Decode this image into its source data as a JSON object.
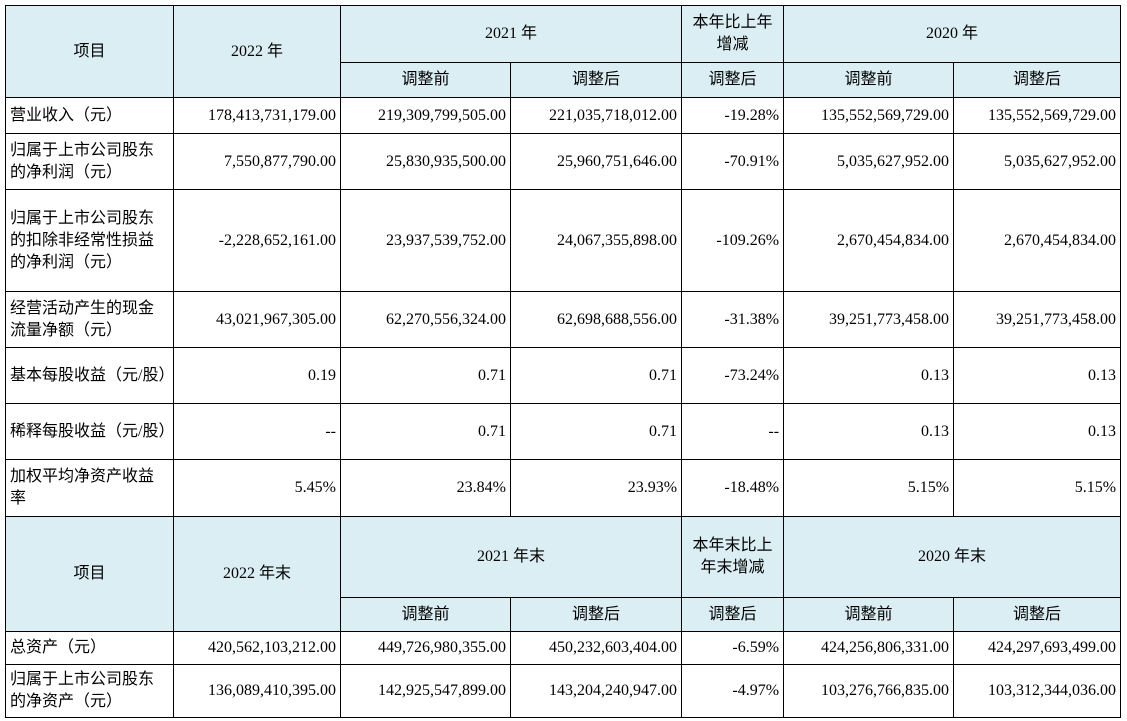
{
  "section1": {
    "header": {
      "item": "项目",
      "col_2022": "2022 年",
      "col_2021": "2021 年",
      "col_change": "本年比上年增减",
      "col_2020": "2020 年",
      "before": "调整前",
      "after": "调整后"
    },
    "rows": [
      {
        "label": "营业收入（元）",
        "v2022": "178,413,731,179.00",
        "v2021_before": "219,309,799,505.00",
        "v2021_after": "221,035,718,012.00",
        "change": "-19.28%",
        "v2020_before": "135,552,569,729.00",
        "v2020_after": "135,552,569,729.00"
      },
      {
        "label": "归属于上市公司股东的净利润（元）",
        "v2022": "7,550,877,790.00",
        "v2021_before": "25,830,935,500.00",
        "v2021_after": "25,960,751,646.00",
        "change": "-70.91%",
        "v2020_before": "5,035,627,952.00",
        "v2020_after": "5,035,627,952.00"
      },
      {
        "label": "归属于上市公司股东的扣除非经常性损益的净利润（元）",
        "v2022": "-2,228,652,161.00",
        "v2021_before": "23,937,539,752.00",
        "v2021_after": "24,067,355,898.00",
        "change": "-109.26%",
        "v2020_before": "2,670,454,834.00",
        "v2020_after": "2,670,454,834.00"
      },
      {
        "label": "经营活动产生的现金流量净额（元）",
        "v2022": "43,021,967,305.00",
        "v2021_before": "62,270,556,324.00",
        "v2021_after": "62,698,688,556.00",
        "change": "-31.38%",
        "v2020_before": "39,251,773,458.00",
        "v2020_after": "39,251,773,458.00"
      },
      {
        "label": "基本每股收益（元/股）",
        "v2022": "0.19",
        "v2021_before": "0.71",
        "v2021_after": "0.71",
        "change": "-73.24%",
        "v2020_before": "0.13",
        "v2020_after": "0.13"
      },
      {
        "label": "稀释每股收益（元/股）",
        "v2022": "--",
        "v2021_before": "0.71",
        "v2021_after": "0.71",
        "change": "--",
        "v2020_before": "0.13",
        "v2020_after": "0.13"
      },
      {
        "label": "加权平均净资产收益率",
        "v2022": "5.45%",
        "v2021_before": "23.84%",
        "v2021_after": "23.93%",
        "change": "-18.48%",
        "v2020_before": "5.15%",
        "v2020_after": "5.15%"
      }
    ]
  },
  "section2": {
    "header": {
      "item": "项目",
      "col_2022": "2022 年末",
      "col_2021": "2021 年末",
      "col_change": "本年末比上年末增减",
      "col_2020": "2020 年末",
      "before": "调整前",
      "after": "调整后"
    },
    "rows": [
      {
        "label": "总资产（元）",
        "v2022": "420,562,103,212.00",
        "v2021_before": "449,726,980,355.00",
        "v2021_after": "450,232,603,404.00",
        "change": "-6.59%",
        "v2020_before": "424,256,806,331.00",
        "v2020_after": "424,297,693,499.00"
      },
      {
        "label": "归属于上市公司股东的净资产（元）",
        "v2022": "136,089,410,395.00",
        "v2021_before": "142,925,547,899.00",
        "v2021_after": "143,204,240,947.00",
        "change": "-4.97%",
        "v2020_before": "103,276,766,835.00",
        "v2020_after": "103,312,344,036.00"
      }
    ]
  },
  "colors": {
    "header_bg": "#daeef3",
    "border": "#000000"
  }
}
